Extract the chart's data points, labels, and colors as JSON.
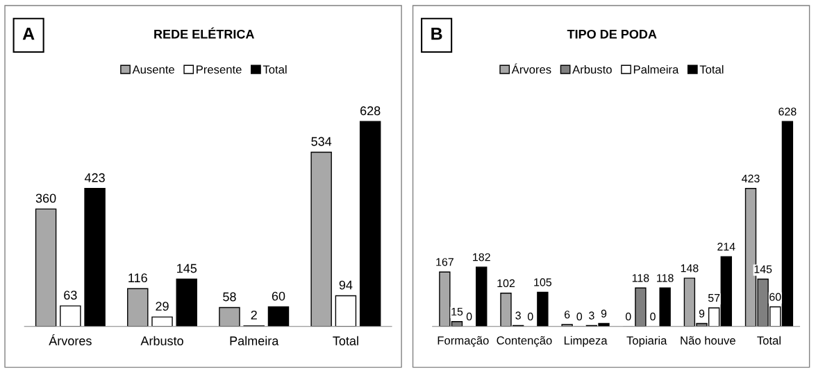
{
  "chart_data": [
    {
      "type": "bar",
      "title": "REDE ELÉTRICA",
      "annotations": [
        "A"
      ],
      "categories": [
        "Árvores",
        "Arbusto",
        "Palmeira",
        "Total"
      ],
      "series": [
        {
          "name": "Ausente",
          "color": "#a8a8a8",
          "values": [
            360,
            116,
            58,
            534
          ]
        },
        {
          "name": "Presente",
          "color": "#ffffff",
          "values": [
            63,
            29,
            2,
            94
          ]
        },
        {
          "name": "Total",
          "color": "#000000",
          "values": [
            423,
            145,
            60,
            628
          ]
        }
      ],
      "data_labels": true,
      "legend": "top",
      "grid": false,
      "tick_labels": "x"
    },
    {
      "type": "bar",
      "title": "TIPO DE PODA",
      "annotations": [
        "B"
      ],
      "categories": [
        "Formação",
        "Contenção",
        "Limpeza",
        "Topiaria",
        "Não houve",
        "Total"
      ],
      "series": [
        {
          "name": "Árvores",
          "color": "#a8a8a8",
          "values": [
            167,
            102,
            6,
            0,
            148,
            423
          ]
        },
        {
          "name": "Arbusto",
          "color": "#808080",
          "values": [
            15,
            3,
            0,
            118,
            9,
            145
          ]
        },
        {
          "name": "Palmeira",
          "color": "#ffffff",
          "values": [
            0,
            0,
            3,
            0,
            57,
            60
          ]
        },
        {
          "name": "Total",
          "color": "#000000",
          "values": [
            182,
            105,
            9,
            118,
            214,
            628
          ]
        }
      ],
      "data_labels": true,
      "legend": "top",
      "grid": false,
      "tick_labels": "x"
    }
  ]
}
